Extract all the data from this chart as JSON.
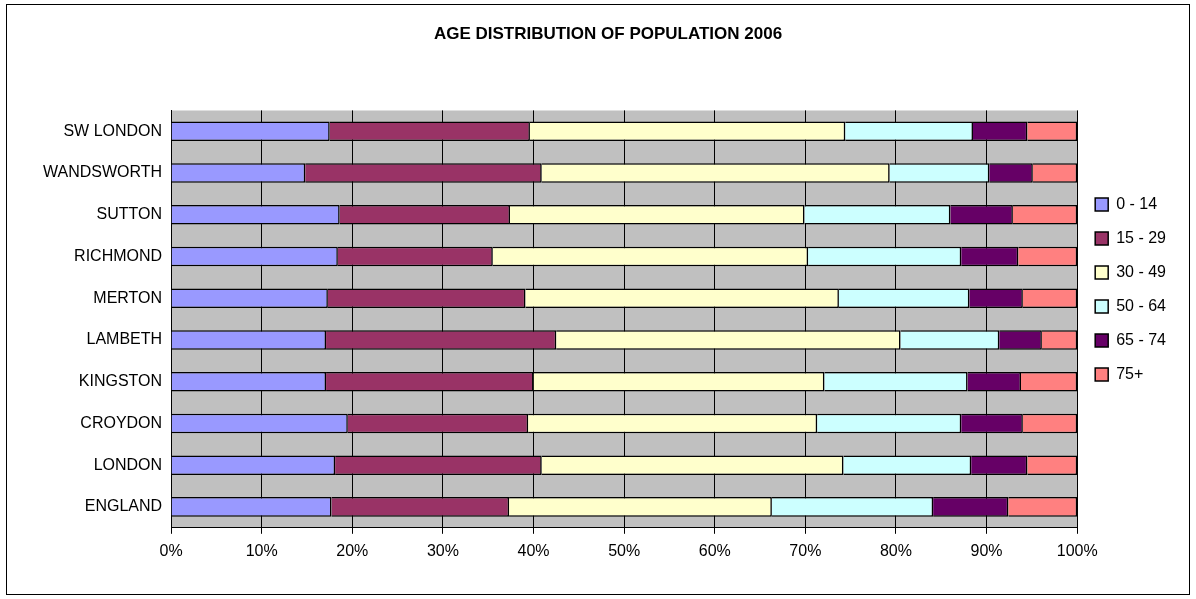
{
  "chart_data": {
    "type": "bar",
    "title": "AGE DISTRIBUTION OF POPULATION 2006",
    "orientation": "horizontal",
    "stacked": true,
    "categories": [
      "SW LONDON",
      "WANDSWORTH",
      "SUTTON",
      "RICHMOND",
      "MERTON",
      "LAMBETH",
      "KINGSTON",
      "CROYDON",
      "LONDON",
      "ENGLAND"
    ],
    "series": [
      {
        "name": "0 - 14",
        "color": "#9999ff",
        "values": [
          17.5,
          14.8,
          18.6,
          18.4,
          17.3,
          17.1,
          17.1,
          19.5,
          18.1,
          17.7
        ]
      },
      {
        "name": "15 - 29",
        "color": "#993366",
        "values": [
          22.1,
          26.1,
          18.8,
          17.1,
          21.8,
          25.4,
          22.9,
          19.9,
          22.8,
          19.6
        ]
      },
      {
        "name": "30 - 49",
        "color": "#ffffcc",
        "values": [
          34.8,
          38.4,
          32.5,
          34.8,
          34.6,
          38.0,
          32.1,
          31.9,
          33.3,
          29.0
        ]
      },
      {
        "name": "50 - 64",
        "color": "#ccffff",
        "values": [
          14.1,
          11.0,
          16.1,
          16.9,
          14.4,
          10.9,
          15.8,
          15.9,
          14.1,
          17.8
        ]
      },
      {
        "name": "65 - 74",
        "color": "#660066",
        "values": [
          6.0,
          4.8,
          6.9,
          6.3,
          5.9,
          4.7,
          5.9,
          6.8,
          6.2,
          8.3
        ]
      },
      {
        "name": "75+",
        "color": "#ff8080",
        "values": [
          5.5,
          4.9,
          7.1,
          6.5,
          6.0,
          3.9,
          6.2,
          6.0,
          5.5,
          7.6
        ]
      }
    ],
    "xlim": [
      0,
      100
    ],
    "xticks": [
      {
        "value": 0,
        "label": "0%"
      },
      {
        "value": 10,
        "label": "10%"
      },
      {
        "value": 20,
        "label": "20%"
      },
      {
        "value": 30,
        "label": "30%"
      },
      {
        "value": 40,
        "label": "40%"
      },
      {
        "value": 50,
        "label": "50%"
      },
      {
        "value": 60,
        "label": "60%"
      },
      {
        "value": 70,
        "label": "70%"
      },
      {
        "value": 80,
        "label": "80%"
      },
      {
        "value": 90,
        "label": "90%"
      },
      {
        "value": 100,
        "label": "100%"
      }
    ],
    "grid": "x",
    "legend": "right"
  }
}
